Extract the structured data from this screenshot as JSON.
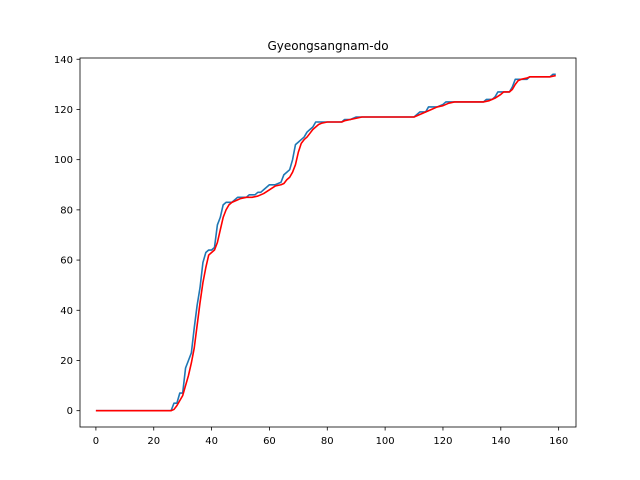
{
  "chart_data": {
    "type": "line",
    "title": "Gyeongsangnam-do",
    "xlabel": "",
    "ylabel": "",
    "xlim": [
      -5.5,
      166
    ],
    "ylim": [
      -6.5,
      140.5
    ],
    "xticks": [
      0,
      20,
      40,
      60,
      80,
      100,
      120,
      140,
      160
    ],
    "yticks": [
      0,
      20,
      40,
      60,
      80,
      100,
      120,
      140
    ],
    "grid": false,
    "series": [
      {
        "color": "#1f77b4",
        "points": [
          [
            0,
            0
          ],
          [
            26,
            0
          ],
          [
            27,
            3
          ],
          [
            28,
            3
          ],
          [
            29,
            7
          ],
          [
            30,
            7
          ],
          [
            31,
            17
          ],
          [
            32,
            20
          ],
          [
            33,
            23
          ],
          [
            34,
            33
          ],
          [
            35,
            42
          ],
          [
            36,
            49
          ],
          [
            37,
            59
          ],
          [
            38,
            63
          ],
          [
            39,
            64
          ],
          [
            40,
            64
          ],
          [
            41,
            65
          ],
          [
            42,
            74
          ],
          [
            43,
            77
          ],
          [
            44,
            82
          ],
          [
            45,
            83
          ],
          [
            46,
            83
          ],
          [
            47,
            83
          ],
          [
            48,
            84
          ],
          [
            49,
            85
          ],
          [
            50,
            85
          ],
          [
            52,
            85
          ],
          [
            53,
            86
          ],
          [
            55,
            86
          ],
          [
            56,
            87
          ],
          [
            57,
            87
          ],
          [
            58,
            88
          ],
          [
            59,
            89
          ],
          [
            60,
            90
          ],
          [
            62,
            90
          ],
          [
            64,
            91
          ],
          [
            65,
            94
          ],
          [
            66,
            95
          ],
          [
            67,
            96
          ],
          [
            68,
            100
          ],
          [
            69,
            106
          ],
          [
            70,
            107
          ],
          [
            71,
            108
          ],
          [
            72,
            109
          ],
          [
            73,
            111
          ],
          [
            74,
            112
          ],
          [
            75,
            113
          ],
          [
            76,
            115
          ],
          [
            78,
            115
          ],
          [
            80,
            115
          ],
          [
            85,
            115
          ],
          [
            86,
            116
          ],
          [
            88,
            116
          ],
          [
            90,
            117
          ],
          [
            95,
            117
          ],
          [
            100,
            117
          ],
          [
            110,
            117
          ],
          [
            111,
            118
          ],
          [
            112,
            119
          ],
          [
            114,
            119
          ],
          [
            115,
            121
          ],
          [
            118,
            121
          ],
          [
            120,
            122
          ],
          [
            121,
            123
          ],
          [
            125,
            123
          ],
          [
            130,
            123
          ],
          [
            134,
            123
          ],
          [
            135,
            124
          ],
          [
            137,
            124
          ],
          [
            138,
            125
          ],
          [
            139,
            127
          ],
          [
            141,
            127
          ],
          [
            142,
            127
          ],
          [
            143,
            127
          ],
          [
            144,
            129
          ],
          [
            145,
            132
          ],
          [
            147,
            132
          ],
          [
            149,
            132
          ],
          [
            150,
            133
          ],
          [
            152,
            133
          ],
          [
            155,
            133
          ],
          [
            157,
            133
          ],
          [
            158,
            134
          ],
          [
            159,
            134
          ]
        ]
      },
      {
        "color": "#ff0000",
        "points": [
          [
            0,
            0
          ],
          [
            26,
            0
          ],
          [
            27,
            0.5
          ],
          [
            28,
            2
          ],
          [
            29,
            4
          ],
          [
            30,
            6
          ],
          [
            31,
            10
          ],
          [
            32,
            14
          ],
          [
            33,
            19
          ],
          [
            34,
            25
          ],
          [
            35,
            34
          ],
          [
            36,
            43
          ],
          [
            37,
            51
          ],
          [
            38,
            57
          ],
          [
            39,
            62
          ],
          [
            40,
            63
          ],
          [
            41,
            64
          ],
          [
            42,
            67
          ],
          [
            43,
            72
          ],
          [
            44,
            77
          ],
          [
            45,
            80
          ],
          [
            46,
            82
          ],
          [
            47,
            83
          ],
          [
            48,
            83.5
          ],
          [
            49,
            84
          ],
          [
            50,
            84.5
          ],
          [
            52,
            85
          ],
          [
            54,
            85
          ],
          [
            56,
            85.5
          ],
          [
            58,
            86.5
          ],
          [
            60,
            88
          ],
          [
            62,
            89.5
          ],
          [
            64,
            90
          ],
          [
            65,
            90.5
          ],
          [
            66,
            92
          ],
          [
            67,
            93
          ],
          [
            68,
            95
          ],
          [
            69,
            98
          ],
          [
            70,
            103
          ],
          [
            71,
            106.5
          ],
          [
            72,
            108
          ],
          [
            73,
            109
          ],
          [
            74,
            110.5
          ],
          [
            75,
            112
          ],
          [
            76,
            113
          ],
          [
            77,
            114
          ],
          [
            78,
            114.5
          ],
          [
            80,
            115
          ],
          [
            85,
            115
          ],
          [
            86,
            115.5
          ],
          [
            88,
            116
          ],
          [
            90,
            116.5
          ],
          [
            92,
            117
          ],
          [
            95,
            117
          ],
          [
            100,
            117
          ],
          [
            110,
            117
          ],
          [
            112,
            118
          ],
          [
            114,
            119
          ],
          [
            116,
            120
          ],
          [
            118,
            121
          ],
          [
            120,
            121.5
          ],
          [
            122,
            122.5
          ],
          [
            124,
            123
          ],
          [
            130,
            123
          ],
          [
            134,
            123
          ],
          [
            136,
            123.5
          ],
          [
            138,
            124.5
          ],
          [
            140,
            126
          ],
          [
            141,
            127
          ],
          [
            142,
            127
          ],
          [
            143,
            127
          ],
          [
            144,
            128
          ],
          [
            145,
            130
          ],
          [
            146,
            131.5
          ],
          [
            147,
            132
          ],
          [
            149,
            132.5
          ],
          [
            150,
            133
          ],
          [
            152,
            133
          ],
          [
            155,
            133
          ],
          [
            157,
            133
          ],
          [
            159,
            133.5
          ]
        ]
      }
    ]
  }
}
